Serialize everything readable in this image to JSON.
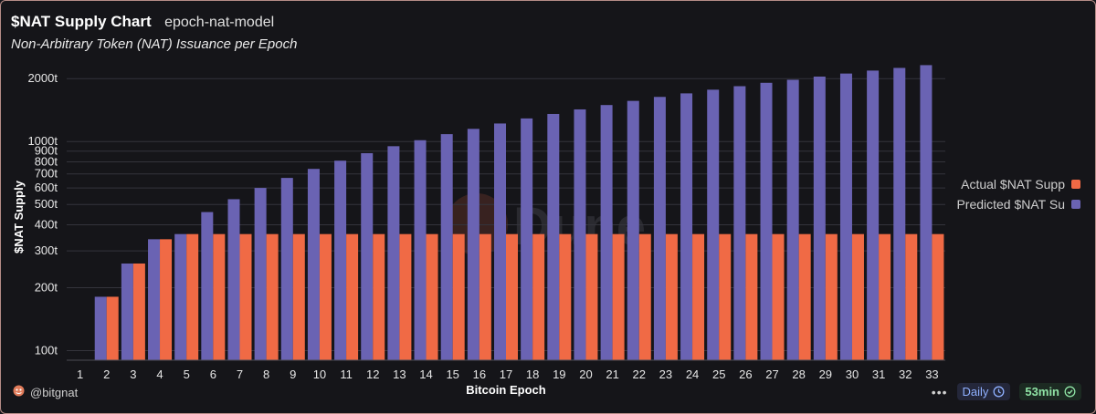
{
  "header": {
    "title": "$NAT Supply Chart",
    "model": "epoch-nat-model",
    "subtitle": "Non-Arbitrary Token (NAT) Issuance per Epoch"
  },
  "footer": {
    "handle": "@bitgnat",
    "interval": "Daily",
    "refresh": "53min",
    "more": "•••"
  },
  "watermark": "Dune",
  "colors": {
    "background": "#151519",
    "predicted": "#6a63b3",
    "actual": "#f06a45",
    "frame": "#b58c86"
  },
  "chart_data": {
    "type": "bar",
    "y_scale": "log",
    "xlabel": "Bitcoin Epoch",
    "ylabel": "$NAT Supply",
    "ylim": [
      90,
      2450
    ],
    "y_ticks": [
      100,
      200,
      300,
      400,
      500,
      600,
      700,
      800,
      900,
      1000,
      2000
    ],
    "y_tick_labels": [
      "100t",
      "200t",
      "300t",
      "400t",
      "500t",
      "600t",
      "700t",
      "800t",
      "900t",
      "1000t",
      "2000t"
    ],
    "categories": [
      "1",
      "2",
      "3",
      "4",
      "5",
      "6",
      "7",
      "8",
      "9",
      "10",
      "11",
      "12",
      "13",
      "14",
      "15",
      "16",
      "17",
      "18",
      "19",
      "20",
      "21",
      "22",
      "23",
      "24",
      "25",
      "26",
      "27",
      "28",
      "29",
      "30",
      "31",
      "32",
      "33"
    ],
    "series": [
      {
        "name": "Predicted $NAT Supply",
        "legend_label": "Predicted $NAT Su",
        "color": "#6a63b3",
        "values": [
          null,
          181,
          261,
          341,
          361,
          460,
          530,
          600,
          670,
          740,
          810,
          880,
          950,
          1015,
          1085,
          1150,
          1220,
          1290,
          1355,
          1425,
          1495,
          1565,
          1635,
          1700,
          1770,
          1840,
          1910,
          1975,
          2045,
          2115,
          2185,
          2250,
          2320
        ]
      },
      {
        "name": "Actual $NAT Supply",
        "legend_label": "Actual $NAT Supp",
        "color": "#f06a45",
        "values": [
          null,
          181,
          261,
          341,
          361,
          361,
          361,
          361,
          361,
          361,
          361,
          361,
          361,
          361,
          361,
          361,
          361,
          361,
          361,
          361,
          361,
          361,
          361,
          361,
          361,
          361,
          361,
          361,
          361,
          361,
          361,
          361,
          361
        ]
      }
    ],
    "legend_position": "right",
    "grid": true
  }
}
